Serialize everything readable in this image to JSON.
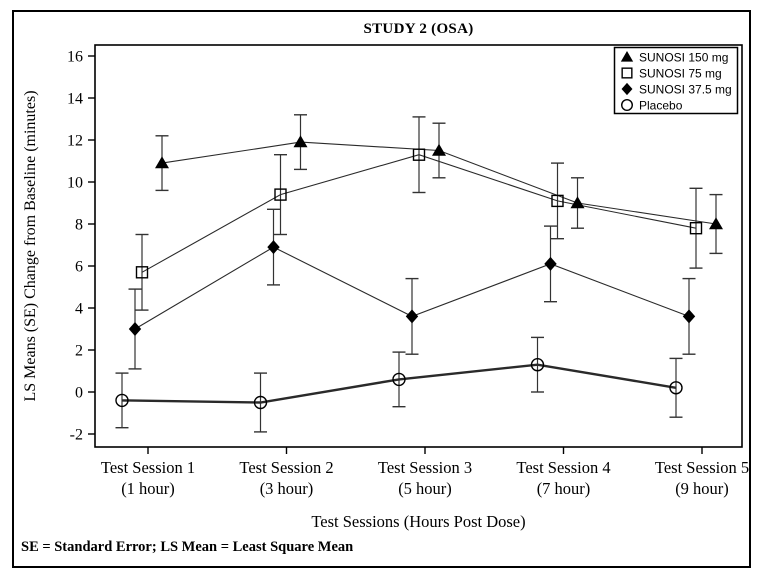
{
  "figure": {
    "title": "STUDY 2 (OSA)",
    "footnote": "SE = Standard Error; LS Mean = Least Square Mean"
  },
  "chart_data": {
    "type": "line",
    "title": "STUDY 2 (OSA)",
    "xlabel": "Test Sessions (Hours Post Dose)",
    "ylabel": "LS Means (SE) Change from Baseline (minutes)",
    "ylim": [
      -2,
      16
    ],
    "yticks": [
      16,
      14,
      12,
      10,
      8,
      6,
      4,
      2,
      0,
      -2
    ],
    "grid": false,
    "error_bars": true,
    "legend_position": "top-right-inside",
    "categories": [
      "Test Session 1",
      "Test Session 2",
      "Test Session 3",
      "Test Session 4",
      "Test Session 5"
    ],
    "category_sublabels": [
      "(1 hour)",
      "(3 hour)",
      "(5 hour)",
      "(7 hour)",
      "(9 hour)"
    ],
    "series": [
      {
        "name": "SUNOSI 150 mg",
        "marker": "triangle-filled",
        "line_width": "thin",
        "values": [
          10.9,
          11.9,
          11.5,
          9.0,
          8.0
        ],
        "se": [
          1.3,
          1.3,
          1.3,
          1.2,
          1.4
        ]
      },
      {
        "name": "SUNOSI 75 mg",
        "marker": "square-open",
        "line_width": "thin",
        "values": [
          5.7,
          9.4,
          11.3,
          9.1,
          7.8
        ],
        "se": [
          1.8,
          1.9,
          1.8,
          1.8,
          1.9
        ]
      },
      {
        "name": "SUNOSI 37.5 mg",
        "marker": "diamond-filled",
        "line_width": "thin",
        "values": [
          3.0,
          6.9,
          3.6,
          6.1,
          3.6
        ],
        "se": [
          1.9,
          1.8,
          1.8,
          1.8,
          1.8
        ]
      },
      {
        "name": "Placebo",
        "marker": "circle-open",
        "line_width": "thick",
        "values": [
          -0.4,
          -0.5,
          0.6,
          1.3,
          0.2
        ],
        "se": [
          1.3,
          1.4,
          1.3,
          1.3,
          1.4
        ]
      }
    ],
    "colors": {
      "line": "#2a2a2a",
      "marker": "#000000",
      "axis": "#000000",
      "background": "#ffffff"
    }
  }
}
